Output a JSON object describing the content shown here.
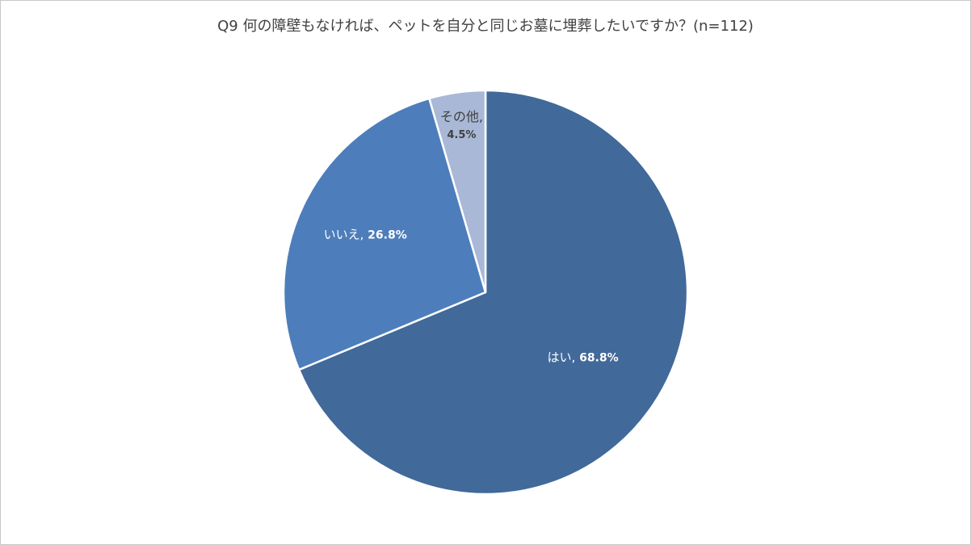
{
  "chart_data": {
    "type": "pie",
    "title": "Q9 何の障壁もなければ、ペットを自分と同じお墓に埋葬したいですか？(n=112)",
    "categories": [
      "はい",
      "いいえ",
      "その他"
    ],
    "values": [
      68.8,
      26.8,
      4.5
    ],
    "unit": "%",
    "value_labels": [
      "68.8%",
      "26.8%",
      "4.5%"
    ],
    "colors": [
      "#41699a",
      "#4d7ebb",
      "#a9b8d6"
    ],
    "legend": "none"
  }
}
